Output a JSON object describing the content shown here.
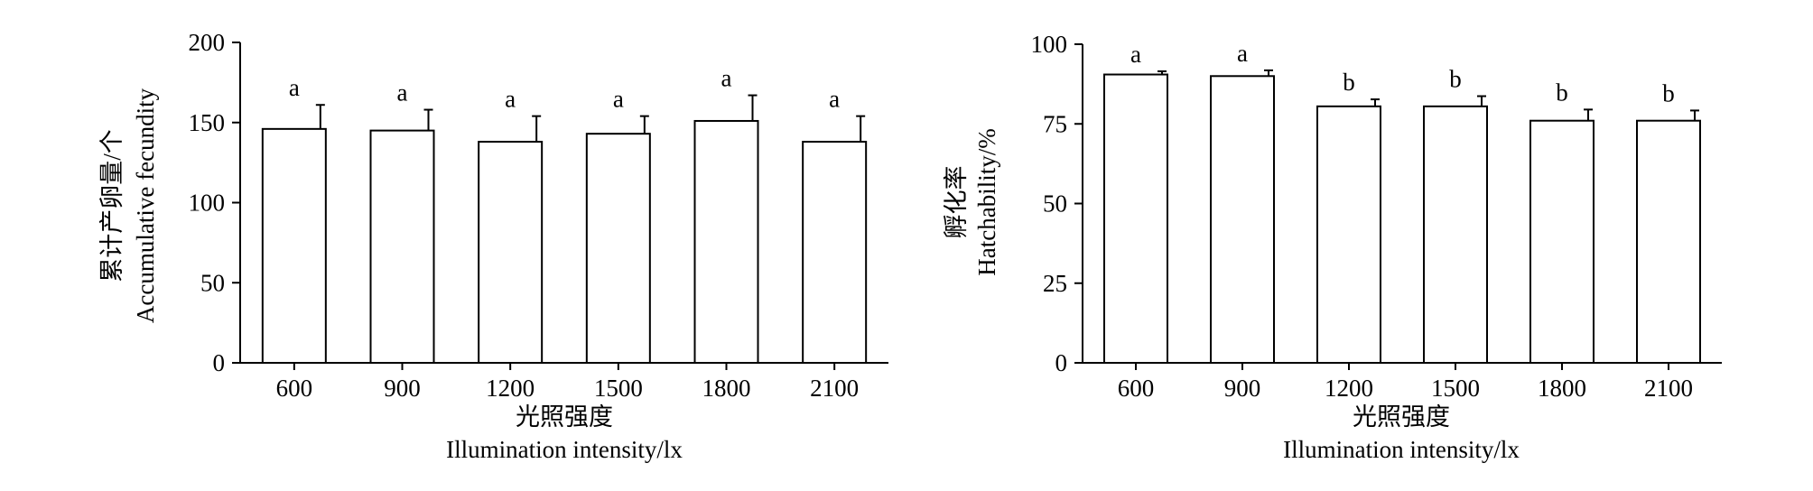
{
  "chart_data": [
    {
      "type": "bar",
      "categories": [
        "600",
        "900",
        "1200",
        "1500",
        "1800",
        "2100"
      ],
      "values": [
        146,
        145,
        138,
        143,
        151,
        138
      ],
      "errors": [
        15,
        13,
        16,
        11,
        16,
        16
      ],
      "significance": [
        "a",
        "a",
        "a",
        "a",
        "a",
        "a"
      ],
      "xlabel_cn": "光照强度",
      "xlabel_en": "Illumination intensity/lx",
      "ylabel_cn": "累计产卵量/个",
      "ylabel_en": "Accumulative fecundity",
      "ylim": [
        0,
        200
      ],
      "yticks": [
        0,
        50,
        100,
        150,
        200
      ],
      "grid": false,
      "bar_color": "#ffffff",
      "edge_color": "#000000"
    },
    {
      "type": "bar",
      "categories": [
        "600",
        "900",
        "1200",
        "1500",
        "1800",
        "2100"
      ],
      "values": [
        90.5,
        90,
        80.5,
        80.5,
        76,
        76
      ],
      "errors": [
        1,
        1.8,
        2.2,
        3.2,
        3.5,
        3.2
      ],
      "significance": [
        "a",
        "a",
        "b",
        "b",
        "b",
        "b"
      ],
      "xlabel_cn": "光照强度",
      "xlabel_en": "Illumination intensity/lx",
      "ylabel_cn": "孵化率",
      "ylabel_en": "Hatchability/%",
      "ylim": [
        0,
        100
      ],
      "yticks": [
        0,
        25,
        50,
        75,
        100
      ],
      "grid": false,
      "bar_color": "#ffffff",
      "edge_color": "#000000"
    }
  ]
}
